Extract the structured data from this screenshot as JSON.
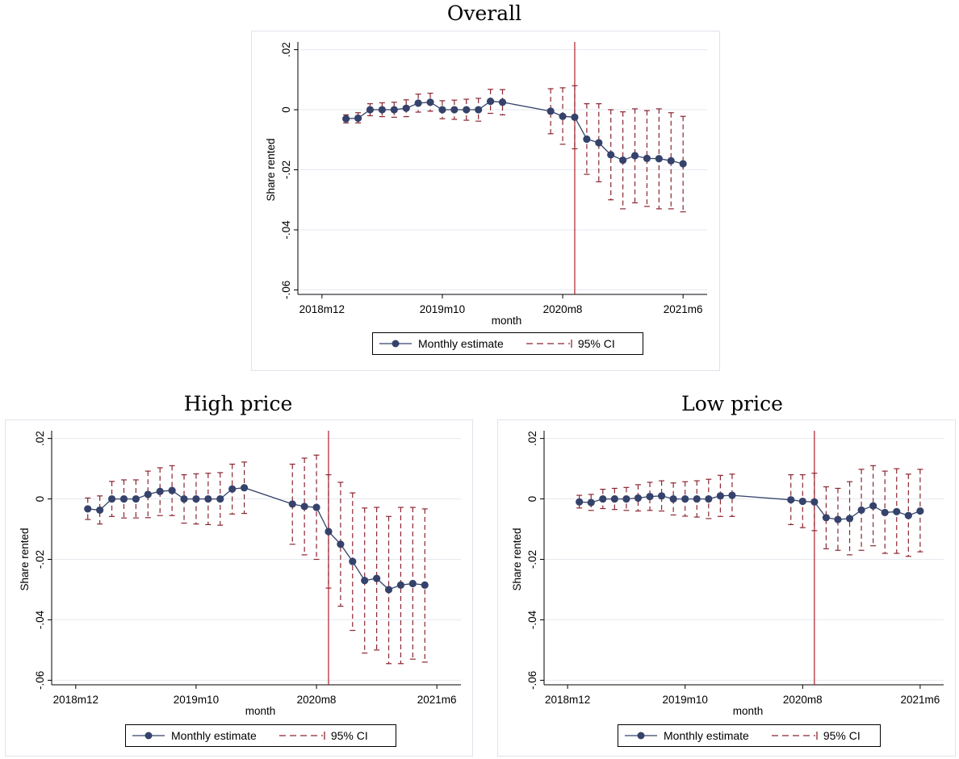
{
  "chart_data": [
    {
      "type": "line",
      "title": "Overall",
      "xlabel": "month",
      "ylabel": "Share rented",
      "x_ticks": [
        "2018m12",
        "2019m10",
        "2020m8",
        "2021m6"
      ],
      "y_ticks": [
        "-.06",
        "-.04",
        "-.02",
        "0",
        ".02"
      ],
      "ylim": [
        -0.0615,
        0.0215
      ],
      "grid": true,
      "vline": "2020m9",
      "series": [
        {
          "name": "Monthly estimate",
          "color": "#35426b",
          "points": [
            {
              "x": "2019m2",
              "y": -0.003,
              "lo": -0.0044,
              "hi": -0.0017
            },
            {
              "x": "2019m3",
              "y": -0.0028,
              "lo": -0.0044,
              "hi": -0.001
            },
            {
              "x": "2019m4",
              "y": 0.0,
              "lo": -0.002,
              "hi": 0.002
            },
            {
              "x": "2019m5",
              "y": 0.0,
              "lo": -0.0023,
              "hi": 0.0023
            },
            {
              "x": "2019m6",
              "y": 0.0,
              "lo": -0.0025,
              "hi": 0.0025
            },
            {
              "x": "2019m7",
              "y": 0.0005,
              "lo": -0.0023,
              "hi": 0.0033
            },
            {
              "x": "2019m8",
              "y": 0.0022,
              "lo": -0.0008,
              "hi": 0.0052
            },
            {
              "x": "2019m9",
              "y": 0.0025,
              "lo": -0.0005,
              "hi": 0.0055
            },
            {
              "x": "2019m10",
              "y": 0.0,
              "lo": -0.003,
              "hi": 0.003
            },
            {
              "x": "2019m11",
              "y": 0.0,
              "lo": -0.0032,
              "hi": 0.0032
            },
            {
              "x": "2019m12",
              "y": 0.0,
              "lo": -0.0035,
              "hi": 0.0035
            },
            {
              "x": "2020m1",
              "y": 0.0,
              "lo": -0.0038,
              "hi": 0.0038
            },
            {
              "x": "2020m2",
              "y": 0.0028,
              "lo": -0.0012,
              "hi": 0.0068
            },
            {
              "x": "2020m3",
              "y": 0.0025,
              "lo": -0.0017,
              "hi": 0.0067
            },
            {
              "x": "2020m7",
              "y": -0.0005,
              "lo": -0.008,
              "hi": 0.007
            },
            {
              "x": "2020m8",
              "y": -0.0022,
              "lo": -0.0115,
              "hi": 0.0073
            },
            {
              "x": "2020m9",
              "y": -0.0025,
              "lo": -0.013,
              "hi": 0.008
            },
            {
              "x": "2020m10",
              "y": -0.0098,
              "lo": -0.0215,
              "hi": 0.002
            },
            {
              "x": "2020m11",
              "y": -0.011,
              "lo": -0.024,
              "hi": 0.002
            },
            {
              "x": "2020m12",
              "y": -0.015,
              "lo": -0.03,
              "hi": 0.0
            },
            {
              "x": "2021m1",
              "y": -0.0168,
              "lo": -0.033,
              "hi": -0.0007
            },
            {
              "x": "2021m2",
              "y": -0.0153,
              "lo": -0.031,
              "hi": 0.0003
            },
            {
              "x": "2021m3",
              "y": -0.0162,
              "lo": -0.0322,
              "hi": -0.0003
            },
            {
              "x": "2021m4",
              "y": -0.0163,
              "lo": -0.033,
              "hi": 0.0003
            },
            {
              "x": "2021m5",
              "y": -0.017,
              "lo": -0.033,
              "hi": -0.001
            },
            {
              "x": "2021m6",
              "y": -0.018,
              "lo": -0.034,
              "hi": -0.0022
            }
          ]
        },
        {
          "name": "95% CI",
          "color": "#8b2530"
        }
      ],
      "legend": [
        "Monthly estimate",
        "95% CI"
      ]
    },
    {
      "type": "line",
      "title": "High price",
      "xlabel": "month",
      "ylabel": "Share rented",
      "x_ticks": [
        "2018m12",
        "2019m10",
        "2020m8",
        "2021m6"
      ],
      "y_ticks": [
        "-.06",
        "-.04",
        "-.02",
        "0",
        ".02"
      ],
      "ylim": [
        -0.0615,
        0.0215
      ],
      "grid": true,
      "vline": "2020m9",
      "series": [
        {
          "name": "Monthly estimate",
          "color": "#35426b",
          "points": [
            {
              "x": "2019m1",
              "y": -0.0033,
              "lo": -0.0068,
              "hi": 0.0003
            },
            {
              "x": "2019m2",
              "y": -0.0037,
              "lo": -0.0083,
              "hi": 0.001
            },
            {
              "x": "2019m3",
              "y": 0.0,
              "lo": -0.0058,
              "hi": 0.0058
            },
            {
              "x": "2019m4",
              "y": 0.0,
              "lo": -0.0063,
              "hi": 0.0063
            },
            {
              "x": "2019m5",
              "y": 0.0,
              "lo": -0.0063,
              "hi": 0.0063
            },
            {
              "x": "2019m6",
              "y": 0.0015,
              "lo": -0.0062,
              "hi": 0.0092
            },
            {
              "x": "2019m7",
              "y": 0.0025,
              "lo": -0.0055,
              "hi": 0.0103
            },
            {
              "x": "2019m8",
              "y": 0.0028,
              "lo": -0.0055,
              "hi": 0.011
            },
            {
              "x": "2019m9",
              "y": 0.0,
              "lo": -0.008,
              "hi": 0.008
            },
            {
              "x": "2019m10",
              "y": 0.0,
              "lo": -0.0083,
              "hi": 0.0083
            },
            {
              "x": "2019m11",
              "y": 0.0,
              "lo": -0.0085,
              "hi": 0.0085
            },
            {
              "x": "2019m12",
              "y": 0.0,
              "lo": -0.0087,
              "hi": 0.0087
            },
            {
              "x": "2020m1",
              "y": 0.0033,
              "lo": -0.005,
              "hi": 0.0115
            },
            {
              "x": "2020m2",
              "y": 0.0037,
              "lo": -0.0048,
              "hi": 0.0122
            },
            {
              "x": "2020m6",
              "y": -0.0017,
              "lo": -0.015,
              "hi": 0.0115
            },
            {
              "x": "2020m7",
              "y": -0.0025,
              "lo": -0.0185,
              "hi": 0.0135
            },
            {
              "x": "2020m8",
              "y": -0.0028,
              "lo": -0.02,
              "hi": 0.0145
            },
            {
              "x": "2020m9",
              "y": -0.0108,
              "lo": -0.0295,
              "hi": 0.008
            },
            {
              "x": "2020m10",
              "y": -0.015,
              "lo": -0.0355,
              "hi": 0.0055
            },
            {
              "x": "2020m11",
              "y": -0.0207,
              "lo": -0.0435,
              "hi": 0.002
            },
            {
              "x": "2020m12",
              "y": -0.027,
              "lo": -0.051,
              "hi": -0.003
            },
            {
              "x": "2021m1",
              "y": -0.0263,
              "lo": -0.05,
              "hi": -0.0028
            },
            {
              "x": "2021m2",
              "y": -0.03,
              "lo": -0.0545,
              "hi": -0.0058
            },
            {
              "x": "2021m3",
              "y": -0.0285,
              "lo": -0.0545,
              "hi": -0.0028
            },
            {
              "x": "2021m4",
              "y": -0.028,
              "lo": -0.053,
              "hi": -0.0028
            },
            {
              "x": "2021m5",
              "y": -0.0285,
              "lo": -0.054,
              "hi": -0.0033
            }
          ]
        },
        {
          "name": "95% CI",
          "color": "#8b2530"
        }
      ],
      "legend": [
        "Monthly estimate",
        "95% CI"
      ]
    },
    {
      "type": "line",
      "title": "Low price",
      "xlabel": "month",
      "ylabel": "Share rented",
      "x_ticks": [
        "2018m12",
        "2019m10",
        "2020m8",
        "2021m6"
      ],
      "y_ticks": [
        "-.06",
        "-.04",
        "-.02",
        "0",
        ".02"
      ],
      "ylim": [
        -0.0615,
        0.0215
      ],
      "grid": true,
      "vline": "2020m9",
      "series": [
        {
          "name": "Monthly estimate",
          "color": "#35426b",
          "points": [
            {
              "x": "2019m1",
              "y": -0.001,
              "lo": -0.003,
              "hi": 0.0012
            },
            {
              "x": "2019m2",
              "y": -0.0012,
              "lo": -0.0038,
              "hi": 0.0015
            },
            {
              "x": "2019m3",
              "y": 0.0,
              "lo": -0.0032,
              "hi": 0.0032
            },
            {
              "x": "2019m4",
              "y": 0.0,
              "lo": -0.0035,
              "hi": 0.0035
            },
            {
              "x": "2019m5",
              "y": 0.0,
              "lo": -0.0038,
              "hi": 0.0038
            },
            {
              "x": "2019m6",
              "y": 0.0003,
              "lo": -0.004,
              "hi": 0.0047
            },
            {
              "x": "2019m7",
              "y": 0.0008,
              "lo": -0.0038,
              "hi": 0.0055
            },
            {
              "x": "2019m8",
              "y": 0.001,
              "lo": -0.004,
              "hi": 0.006
            },
            {
              "x": "2019m9",
              "y": 0.0,
              "lo": -0.0053,
              "hi": 0.0053
            },
            {
              "x": "2019m10",
              "y": 0.0,
              "lo": -0.0057,
              "hi": 0.0057
            },
            {
              "x": "2019m11",
              "y": 0.0,
              "lo": -0.006,
              "hi": 0.006
            },
            {
              "x": "2019m12",
              "y": 0.0,
              "lo": -0.0065,
              "hi": 0.0065
            },
            {
              "x": "2020m1",
              "y": 0.001,
              "lo": -0.0058,
              "hi": 0.0078
            },
            {
              "x": "2020m2",
              "y": 0.0012,
              "lo": -0.0058,
              "hi": 0.0082
            },
            {
              "x": "2020m7",
              "y": -0.0003,
              "lo": -0.0085,
              "hi": 0.008
            },
            {
              "x": "2020m8",
              "y": -0.0008,
              "lo": -0.0095,
              "hi": 0.008
            },
            {
              "x": "2020m9",
              "y": -0.001,
              "lo": -0.0105,
              "hi": 0.0085
            },
            {
              "x": "2020m10",
              "y": -0.0062,
              "lo": -0.0165,
              "hi": 0.004
            },
            {
              "x": "2020m11",
              "y": -0.0068,
              "lo": -0.017,
              "hi": 0.0035
            },
            {
              "x": "2020m12",
              "y": -0.0065,
              "lo": -0.0185,
              "hi": 0.0057
            },
            {
              "x": "2021m1",
              "y": -0.0037,
              "lo": -0.017,
              "hi": 0.0098
            },
            {
              "x": "2021m2",
              "y": -0.0023,
              "lo": -0.0155,
              "hi": 0.011
            },
            {
              "x": "2021m3",
              "y": -0.0045,
              "lo": -0.018,
              "hi": 0.0092
            },
            {
              "x": "2021m4",
              "y": -0.0042,
              "lo": -0.018,
              "hi": 0.01
            },
            {
              "x": "2021m5",
              "y": -0.0055,
              "lo": -0.019,
              "hi": 0.0082
            },
            {
              "x": "2021m6",
              "y": -0.004,
              "lo": -0.0175,
              "hi": 0.0098
            }
          ]
        },
        {
          "name": "95% CI",
          "color": "#8b2530"
        }
      ],
      "legend": [
        "Monthly estimate",
        "95% CI"
      ]
    }
  ]
}
